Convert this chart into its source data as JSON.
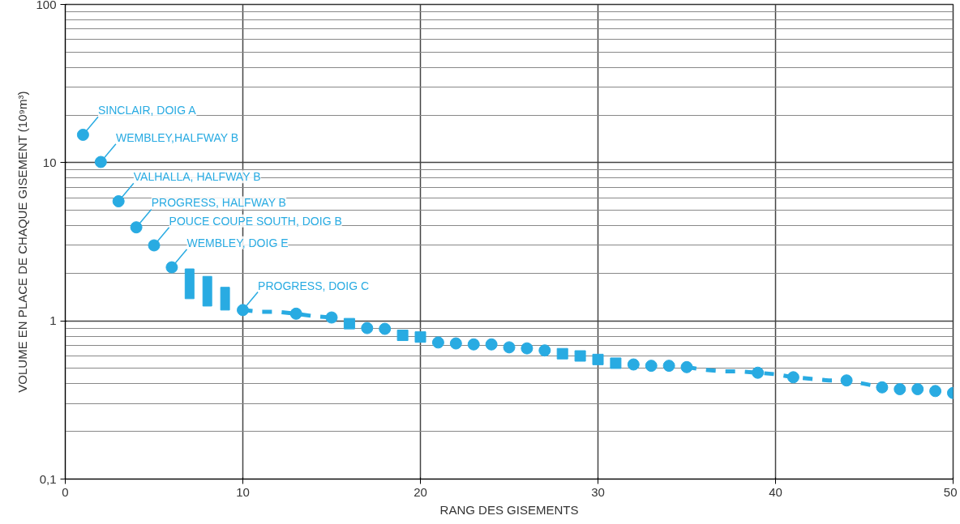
{
  "chart_data": {
    "type": "scatter",
    "xlabel": "RANG DES GISEMENTS",
    "ylabel": "VOLUME EN PLACE DE CHAQUE GISEMENT (10⁹m³)",
    "log": "y",
    "grid": true,
    "xlim": [
      0,
      50
    ],
    "xticks": [
      0,
      10,
      20,
      30,
      40,
      50
    ],
    "ylim": [
      0.1,
      100
    ],
    "yticks": [
      {
        "value": 0.1,
        "label": "0,1"
      },
      1,
      10,
      100
    ],
    "series": [
      {
        "marker": "circle",
        "color": "#29abe2",
        "x": [
          1,
          2,
          3,
          4,
          5,
          6,
          10,
          13,
          15,
          17,
          18,
          21,
          22,
          23,
          24,
          25,
          26,
          27,
          32,
          33,
          34,
          35,
          39,
          41,
          44,
          46,
          47,
          48,
          49,
          50
        ],
        "values": [
          15,
          10.1,
          5.7,
          3.9,
          3.0,
          2.18,
          1.17,
          1.11,
          1.05,
          0.9,
          0.89,
          0.73,
          0.72,
          0.71,
          0.71,
          0.68,
          0.67,
          0.65,
          0.53,
          0.52,
          0.52,
          0.51,
          0.47,
          0.44,
          0.42,
          0.38,
          0.37,
          0.37,
          0.36,
          0.35
        ]
      },
      {
        "type": "scatter",
        "marker": "square",
        "color": "#29abe2",
        "x": [
          16,
          19,
          20,
          28,
          29,
          30,
          31
        ],
        "values": [
          0.96,
          0.81,
          0.79,
          0.62,
          0.6,
          0.57,
          0.54
        ]
      },
      {
        "type": "bar",
        "color": "#29abe2",
        "x": [
          7,
          8,
          9
        ],
        "base": [
          1.38,
          1.24,
          1.17
        ],
        "values": [
          0.75,
          0.67,
          0.46
        ]
      },
      {
        "type": "line",
        "line_style": "dashed",
        "marker": "none",
        "color": "#29abe2",
        "x": [
          10,
          11,
          12,
          13,
          14,
          15,
          25,
          35,
          36,
          37,
          38,
          39,
          40,
          41,
          42,
          43,
          44,
          45,
          46
        ],
        "values": [
          1.17,
          1.14,
          1.14,
          1.11,
          1.07,
          1.05,
          null,
          0.51,
          0.49,
          0.48,
          0.48,
          0.47,
          0.46,
          0.44,
          0.43,
          0.42,
          0.42,
          0.4,
          0.38
        ]
      }
    ],
    "annotations": [
      {
        "text": "SINCLAIR, DOIG A",
        "x": 1,
        "y": 15
      },
      {
        "text": "WEMBLEY,HALFWAY B",
        "x": 2,
        "y": 10.1
      },
      {
        "text": "VALHALLA, HALFWAY B",
        "x": 3,
        "y": 5.7
      },
      {
        "text": "PROGRESS, HALFWAY B",
        "x": 4,
        "y": 3.9
      },
      {
        "text": "POUCE COUPE SOUTH, DOIG B",
        "x": 5,
        "y": 3.0
      },
      {
        "text": "WEMBLEY, DOIG E",
        "x": 6,
        "y": 2.18
      },
      {
        "text": "PROGRESS, DOIG C",
        "x": 10,
        "y": 1.17
      }
    ]
  }
}
